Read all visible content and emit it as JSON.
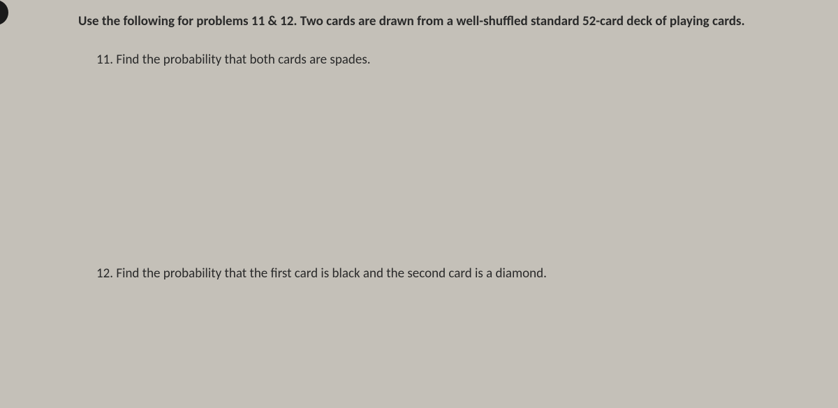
{
  "document": {
    "instructions": "Use the following for problems 11 & 12.  Two cards are drawn from a well-shuffled standard 52-card deck of playing cards.",
    "problems": {
      "p11": {
        "number": "11.",
        "text": "Find the probability that both cards are spades."
      },
      "p12": {
        "number": "12.",
        "text": "Find the probability that the first card is black and the second card is a diamond."
      }
    },
    "style": {
      "background_color": "#c4c0b8",
      "text_color": "#2a2a2a",
      "instructions_fontsize": 19,
      "instructions_fontweight": "bold",
      "problem_fontsize": 19,
      "font_family": "Calibri, Arial, sans-serif"
    }
  }
}
